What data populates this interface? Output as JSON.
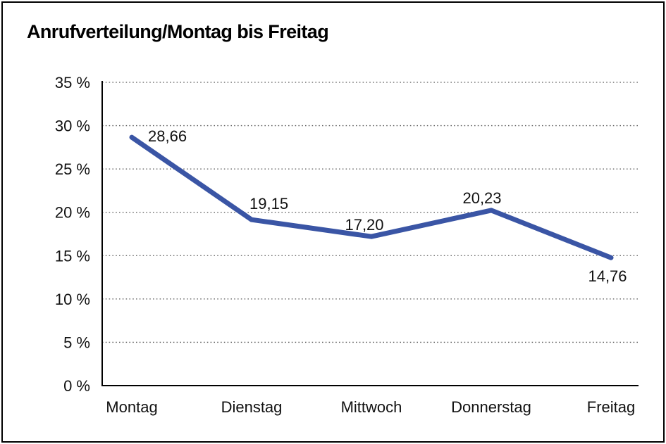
{
  "header": {
    "title": "Anrufverteilung/Montag bis Freitag"
  },
  "chart_data": {
    "type": "line",
    "title": "Anrufverteilung/Montag bis Freitag",
    "categories": [
      "Montag",
      "Dienstag",
      "Mittwoch",
      "Donnerstag",
      "Freitag"
    ],
    "series": [
      {
        "name": "Anrufverteilung",
        "values": [
          28.66,
          19.15,
          17.2,
          20.23,
          14.76
        ],
        "point_labels": [
          "28,66",
          "19,15",
          "17,20",
          "20,23",
          "14,76"
        ],
        "color": "#3A55A5"
      }
    ],
    "xlabel": "",
    "ylabel": "",
    "ylim": [
      0,
      35
    ],
    "y_ticks": [
      {
        "value": 0,
        "label": "0 %"
      },
      {
        "value": 5,
        "label": "5 %"
      },
      {
        "value": 10,
        "label": "10 %"
      },
      {
        "value": 15,
        "label": "15 %"
      },
      {
        "value": 20,
        "label": "20 %"
      },
      {
        "value": 25,
        "label": "25 %"
      },
      {
        "value": 30,
        "label": "30 %"
      },
      {
        "value": 35,
        "label": "35 %"
      }
    ],
    "grid": "horizontal-dotted",
    "legend_position": "none",
    "value_label_decimal_separator": ","
  },
  "colors": {
    "line": "#3A55A5",
    "axis": "#000000",
    "gridline": "#5a5a5a",
    "text": "#111111",
    "background": "#ffffff",
    "border": "#000000"
  }
}
